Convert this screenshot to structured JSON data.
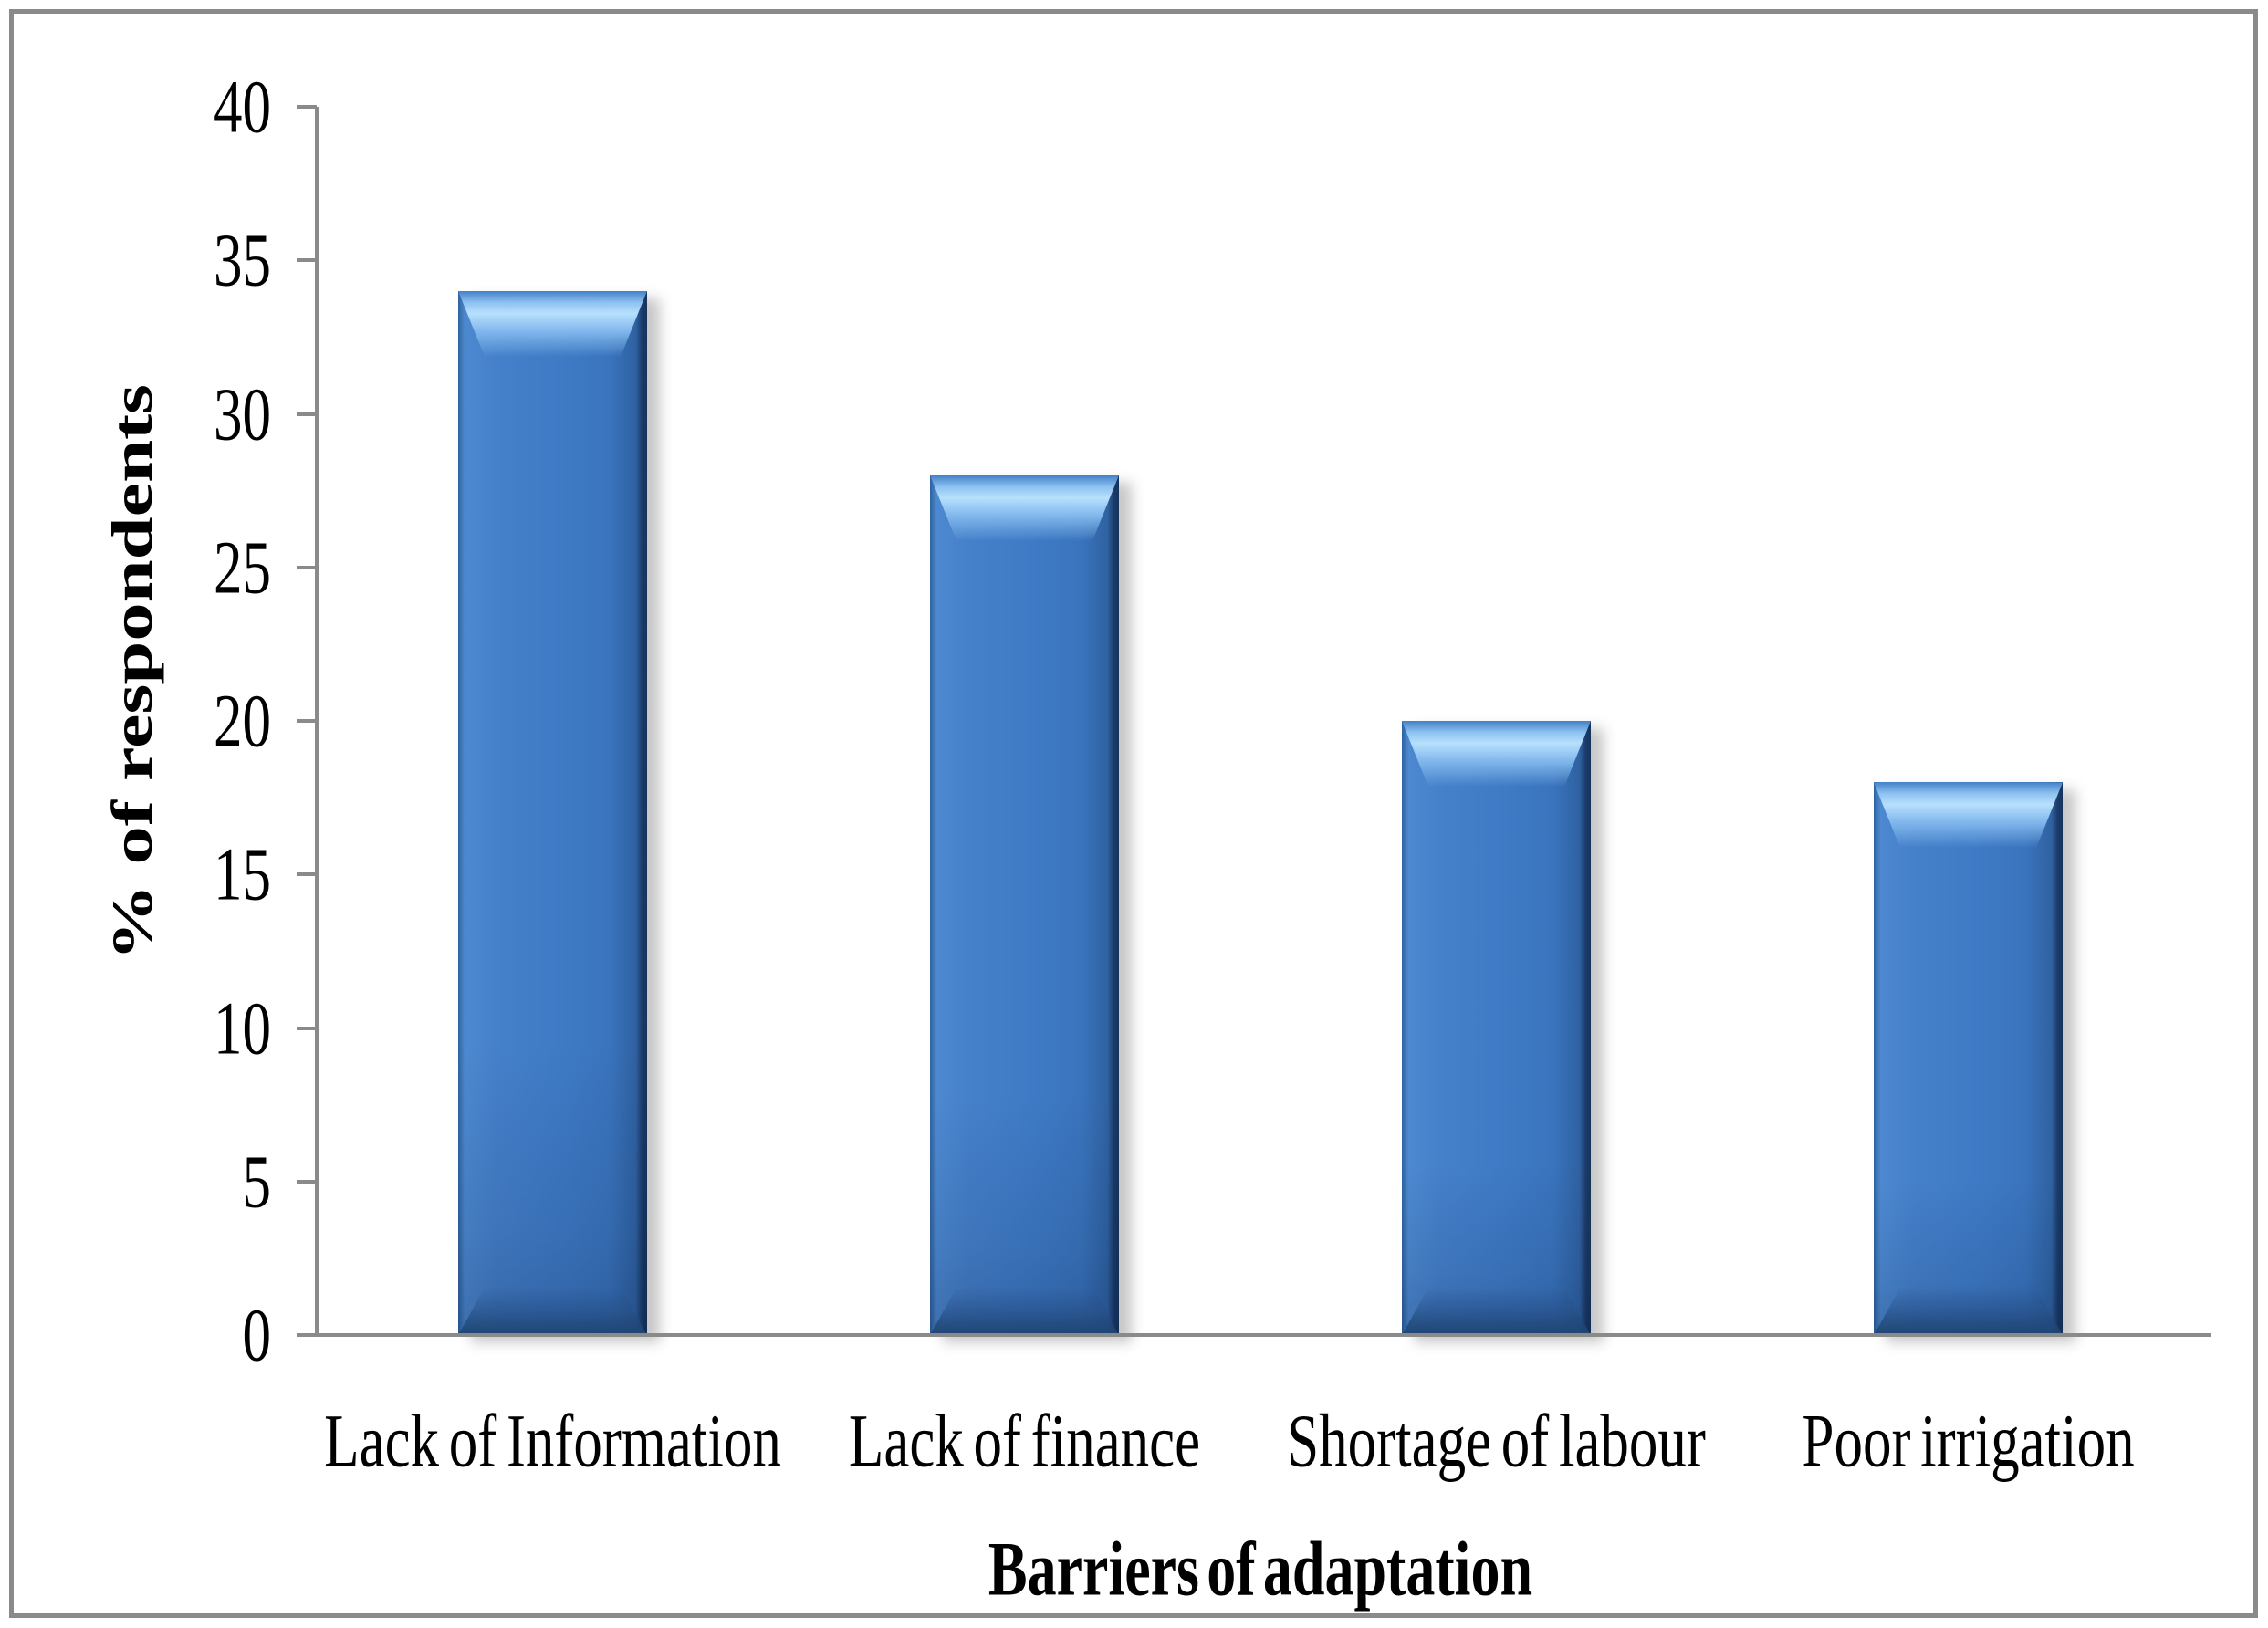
{
  "chart_data": {
    "type": "bar",
    "title": "",
    "categories": [
      "Lack of Information",
      "Lack of finance",
      "Shortage of labour",
      "Poor irrigation"
    ],
    "values": [
      34,
      28,
      20,
      18
    ],
    "series": [
      {
        "name": "% of respondents",
        "values": [
          34,
          28,
          20,
          18
        ]
      }
    ],
    "xlabel": "Barriers of adaptation",
    "ylabel": "% of respondents",
    "ylim": [
      0,
      40
    ],
    "ytick_step": 5,
    "ytick_labels": [
      "0",
      "5",
      "10",
      "15",
      "20",
      "25",
      "30",
      "35",
      "40"
    ],
    "grid": "off",
    "legend": "none",
    "colors": {
      "bar_fill": "#3e7ac5",
      "bar_highlight": "#b7e0fc",
      "bar_edge_dark": "#16345c",
      "axis": "#8a8a8a",
      "frame_border": "#8a8a8a",
      "text": "#000000",
      "background": "#ffffff"
    }
  }
}
